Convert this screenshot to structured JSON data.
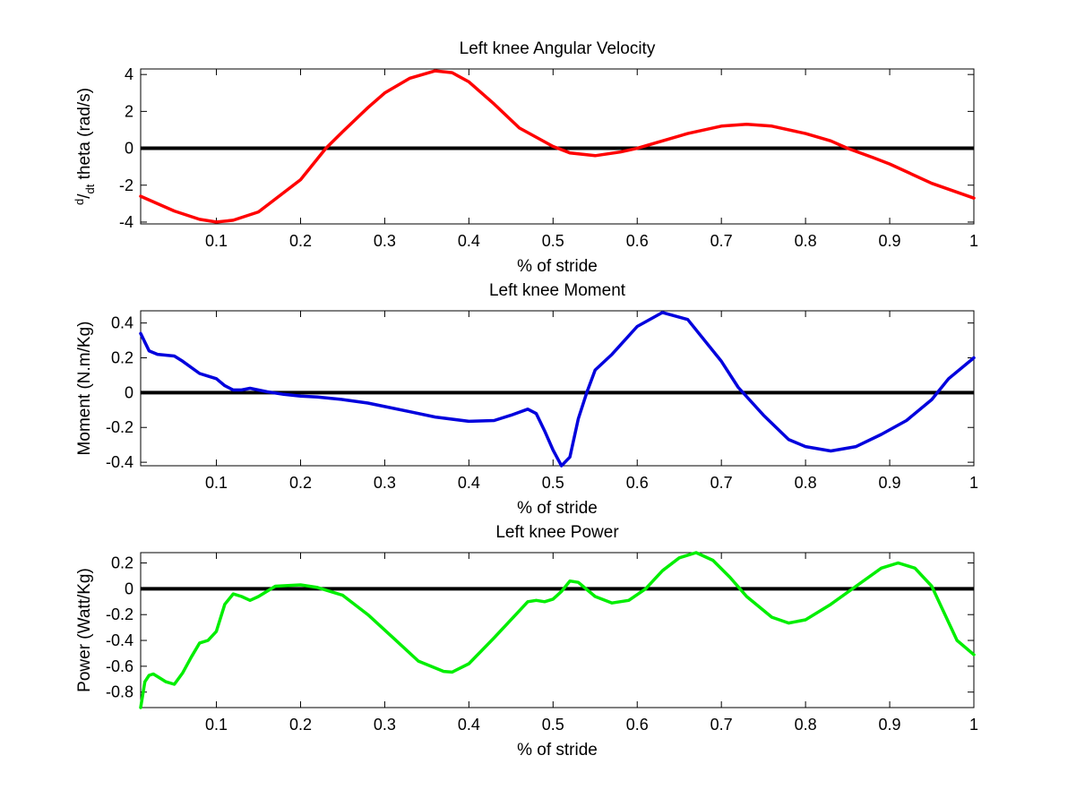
{
  "chart_data": [
    {
      "type": "line",
      "title": "Left knee Angular Velocity",
      "xlabel": "% of stride",
      "ylabel": {
        "prefix_num": "d",
        "prefix_den": "dt",
        "text": " theta (rad/s)"
      },
      "xlim": [
        0.01,
        1.0
      ],
      "ylim": [
        -4.1,
        4.3
      ],
      "xticks": [
        0.1,
        0.2,
        0.3,
        0.4,
        0.5,
        0.6,
        0.7,
        0.8,
        0.9,
        1.0
      ],
      "xtick_labels": [
        "0.1",
        "0.2",
        "0.3",
        "0.4",
        "0.5",
        "0.6",
        "0.7",
        "0.8",
        "0.9",
        "1"
      ],
      "yticks": [
        -4,
        -2,
        0,
        2,
        4
      ],
      "ytick_labels": [
        "-4",
        "-2",
        "0",
        "2",
        "4"
      ],
      "zero_line": {
        "value": 0,
        "color": "#000000"
      },
      "series": [
        {
          "color": "#ff0000",
          "x": [
            0.01,
            0.05,
            0.08,
            0.1,
            0.12,
            0.15,
            0.2,
            0.23,
            0.25,
            0.28,
            0.3,
            0.33,
            0.36,
            0.38,
            0.4,
            0.43,
            0.46,
            0.5,
            0.52,
            0.55,
            0.58,
            0.6,
            0.63,
            0.66,
            0.7,
            0.73,
            0.76,
            0.8,
            0.83,
            0.85,
            0.88,
            0.9,
            0.95,
            1.0
          ],
          "y": [
            -2.6,
            -3.4,
            -3.85,
            -4.0,
            -3.9,
            -3.45,
            -1.7,
            0.0,
            0.9,
            2.2,
            3.0,
            3.8,
            4.2,
            4.1,
            3.6,
            2.4,
            1.1,
            0.1,
            -0.25,
            -0.4,
            -0.2,
            0.0,
            0.4,
            0.8,
            1.2,
            1.3,
            1.2,
            0.8,
            0.4,
            0.0,
            -0.5,
            -0.85,
            -1.9,
            -2.7
          ]
        }
      ]
    },
    {
      "type": "line",
      "title": "Left knee Moment",
      "xlabel": "% of stride",
      "ylabel": "Moment (N.m/Kg)",
      "xlim": [
        0.01,
        1.0
      ],
      "ylim": [
        -0.42,
        0.47
      ],
      "xticks": [
        0.1,
        0.2,
        0.3,
        0.4,
        0.5,
        0.6,
        0.7,
        0.8,
        0.9,
        1.0
      ],
      "xtick_labels": [
        "0.1",
        "0.2",
        "0.3",
        "0.4",
        "0.5",
        "0.6",
        "0.7",
        "0.8",
        "0.9",
        "1"
      ],
      "yticks": [
        -0.4,
        -0.2,
        0,
        0.2,
        0.4
      ],
      "ytick_labels": [
        "-0.4",
        "-0.2",
        "0",
        "0.2",
        "0.4"
      ],
      "zero_line": {
        "value": 0,
        "color": "#000000"
      },
      "series": [
        {
          "color": "#0000dd",
          "x": [
            0.01,
            0.02,
            0.03,
            0.05,
            0.06,
            0.08,
            0.09,
            0.1,
            0.11,
            0.12,
            0.13,
            0.14,
            0.16,
            0.18,
            0.2,
            0.22,
            0.25,
            0.28,
            0.3,
            0.33,
            0.36,
            0.4,
            0.43,
            0.45,
            0.47,
            0.48,
            0.49,
            0.5,
            0.51,
            0.52,
            0.53,
            0.54,
            0.55,
            0.57,
            0.6,
            0.63,
            0.66,
            0.7,
            0.72,
            0.75,
            0.78,
            0.8,
            0.83,
            0.86,
            0.89,
            0.92,
            0.95,
            0.97,
            1.0
          ],
          "y": [
            0.34,
            0.24,
            0.22,
            0.21,
            0.18,
            0.11,
            0.095,
            0.08,
            0.04,
            0.015,
            0.015,
            0.025,
            0.005,
            -0.01,
            -0.02,
            -0.025,
            -0.04,
            -0.06,
            -0.08,
            -0.11,
            -0.14,
            -0.165,
            -0.16,
            -0.13,
            -0.095,
            -0.12,
            -0.22,
            -0.33,
            -0.42,
            -0.37,
            -0.15,
            0.0,
            0.13,
            0.22,
            0.38,
            0.46,
            0.42,
            0.18,
            0.03,
            -0.13,
            -0.27,
            -0.31,
            -0.335,
            -0.31,
            -0.24,
            -0.16,
            -0.04,
            0.08,
            0.2
          ]
        }
      ]
    },
    {
      "type": "line",
      "title": "Left knee Power",
      "xlabel": "% of stride",
      "ylabel": "Power (Watt/Kg)",
      "xlim": [
        0.01,
        1.0
      ],
      "ylim": [
        -0.92,
        0.28
      ],
      "xticks": [
        0.1,
        0.2,
        0.3,
        0.4,
        0.5,
        0.6,
        0.7,
        0.8,
        0.9,
        1.0
      ],
      "xtick_labels": [
        "0.1",
        "0.2",
        "0.3",
        "0.4",
        "0.5",
        "0.6",
        "0.7",
        "0.8",
        "0.9",
        "1"
      ],
      "yticks": [
        -0.8,
        -0.6,
        -0.4,
        -0.2,
        0,
        0.2
      ],
      "ytick_labels": [
        "-0.8",
        "-0.6",
        "-0.4",
        "-0.2",
        "0",
        "0.2"
      ],
      "zero_line": {
        "value": 0,
        "color": "#000000"
      },
      "series": [
        {
          "color": "#00ee00",
          "x": [
            0.01,
            0.015,
            0.02,
            0.025,
            0.03,
            0.04,
            0.05,
            0.06,
            0.07,
            0.08,
            0.09,
            0.1,
            0.11,
            0.12,
            0.13,
            0.14,
            0.15,
            0.17,
            0.2,
            0.22,
            0.25,
            0.28,
            0.31,
            0.34,
            0.37,
            0.38,
            0.4,
            0.43,
            0.46,
            0.47,
            0.48,
            0.49,
            0.5,
            0.51,
            0.52,
            0.53,
            0.55,
            0.57,
            0.59,
            0.61,
            0.63,
            0.65,
            0.67,
            0.69,
            0.71,
            0.73,
            0.76,
            0.78,
            0.8,
            0.83,
            0.86,
            0.89,
            0.91,
            0.93,
            0.95,
            0.96,
            0.98,
            1.0
          ],
          "y": [
            -0.92,
            -0.72,
            -0.67,
            -0.66,
            -0.68,
            -0.72,
            -0.74,
            -0.65,
            -0.53,
            -0.42,
            -0.4,
            -0.33,
            -0.12,
            -0.04,
            -0.06,
            -0.09,
            -0.06,
            0.02,
            0.03,
            0.01,
            -0.05,
            -0.2,
            -0.38,
            -0.56,
            -0.64,
            -0.645,
            -0.58,
            -0.38,
            -0.17,
            -0.1,
            -0.09,
            -0.1,
            -0.08,
            -0.02,
            0.06,
            0.05,
            -0.06,
            -0.11,
            -0.09,
            0.0,
            0.14,
            0.24,
            0.28,
            0.22,
            0.09,
            -0.06,
            -0.22,
            -0.265,
            -0.24,
            -0.12,
            0.02,
            0.16,
            0.2,
            0.16,
            0.02,
            -0.12,
            -0.4,
            -0.51
          ]
        }
      ]
    }
  ]
}
